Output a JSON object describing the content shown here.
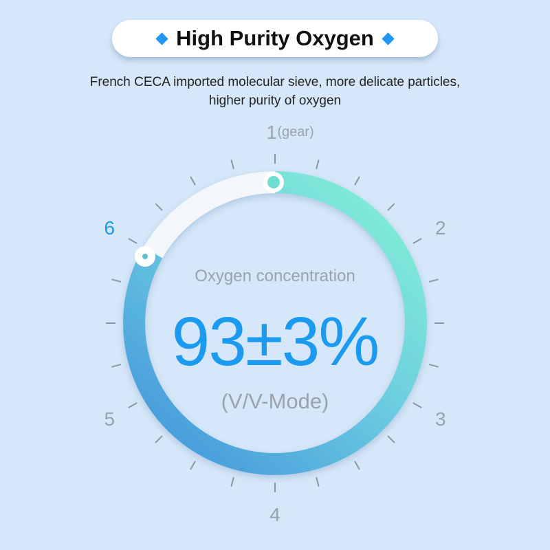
{
  "header": {
    "title": "High Purity Oxygen",
    "icon": "diamond-icon",
    "accent": "#2196f3"
  },
  "subtitle": {
    "line1": "French CECA imported molecular sieve, more delicate particles,",
    "line2": "higher purity of oxygen"
  },
  "dial": {
    "labels": [
      "1",
      "2",
      "3",
      "4",
      "5",
      "6"
    ],
    "unit": "(gear)",
    "selected_label": "6",
    "concentration_label": "Oxygen concentration",
    "value": "93±3%",
    "mode": "(V/V-Mode)",
    "colors": {
      "ring_start": "#7ee9d6",
      "ring_end": "#4a9fdc",
      "value": "#1b9af0",
      "selected": "#1b9af0",
      "label": "#9aa3ad"
    }
  }
}
